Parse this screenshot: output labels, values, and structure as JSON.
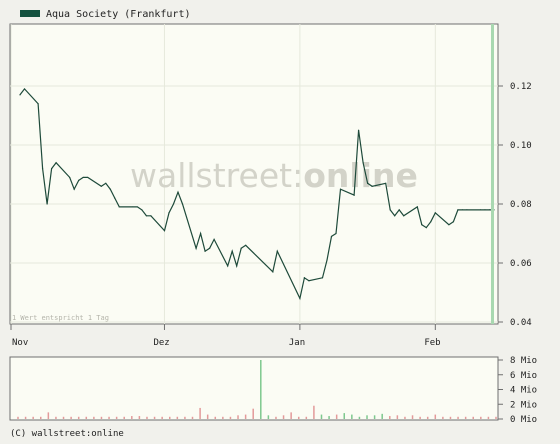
{
  "legend": {
    "label": "Aqua Society (Frankfurt)",
    "color": "#14523f"
  },
  "watermark": {
    "part1": "wallstreet",
    "part2": ":",
    "part3": "online"
  },
  "footnote": "1 Wert entspricht 1 Tag",
  "copyright": "(C) wallstreet:online",
  "colors": {
    "line": "#1e4a3a",
    "background": "#fbfcf4",
    "frame": "#6f6f6f",
    "grid": "#e6e9dc",
    "volume": "#e39a9a",
    "volume_up": "#7ec88e",
    "cursor": "#a8d8b0"
  },
  "chart_data": [
    {
      "type": "line",
      "series": [
        {
          "name": "Aqua Society (Frankfurt)",
          "x": [
            "2007-11-01",
            "2007-11-02",
            "2007-11-05",
            "2007-11-06",
            "2007-11-07",
            "2007-11-08",
            "2007-11-09",
            "2007-11-12",
            "2007-11-13",
            "2007-11-14",
            "2007-11-15",
            "2007-11-16",
            "2007-11-19",
            "2007-11-20",
            "2007-11-21",
            "2007-11-22",
            "2007-11-23",
            "2007-11-26",
            "2007-11-27",
            "2007-11-28",
            "2007-11-29",
            "2007-11-30",
            "2007-12-03",
            "2007-12-04",
            "2007-12-05",
            "2007-12-06",
            "2007-12-07",
            "2007-12-10",
            "2007-12-11",
            "2007-12-12",
            "2007-12-13",
            "2007-12-14",
            "2007-12-17",
            "2007-12-18",
            "2007-12-19",
            "2007-12-20",
            "2007-12-21",
            "2007-12-27",
            "2007-12-28",
            "2008-01-02",
            "2008-01-03",
            "2008-01-04",
            "2008-01-07",
            "2008-01-08",
            "2008-01-09",
            "2008-01-10",
            "2008-01-11",
            "2008-01-14",
            "2008-01-15",
            "2008-01-16",
            "2008-01-17",
            "2008-01-18",
            "2008-01-21",
            "2008-01-22",
            "2008-01-23",
            "2008-01-24",
            "2008-01-25",
            "2008-01-28",
            "2008-01-29",
            "2008-01-30",
            "2008-01-31",
            "2008-02-01",
            "2008-02-04",
            "2008-02-05",
            "2008-02-06",
            "2008-02-07",
            "2008-02-08",
            "2008-02-11",
            "2008-02-12",
            "2008-02-13",
            "2008-02-14"
          ],
          "values": [
            0.117,
            0.119,
            0.114,
            0.092,
            0.08,
            0.092,
            0.094,
            0.089,
            0.085,
            0.088,
            0.089,
            0.089,
            0.086,
            0.087,
            0.085,
            0.082,
            0.079,
            0.079,
            0.079,
            0.078,
            0.076,
            0.076,
            0.071,
            0.077,
            0.08,
            0.084,
            0.08,
            0.065,
            0.07,
            0.064,
            0.065,
            0.068,
            0.059,
            0.064,
            0.059,
            0.065,
            0.066,
            0.057,
            0.064,
            0.048,
            0.055,
            0.054,
            0.055,
            0.061,
            0.069,
            0.07,
            0.085,
            0.083,
            0.105,
            0.094,
            0.087,
            0.086,
            0.087,
            0.078,
            0.076,
            0.078,
            0.076,
            0.079,
            0.073,
            0.072,
            0.074,
            0.077,
            0.073,
            0.074,
            0.078,
            0.078,
            0.078,
            0.078,
            0.078,
            0.078,
            0.078
          ]
        }
      ],
      "x_tick_labels": [
        "Nov",
        "Dez",
        "Jan",
        "Feb"
      ],
      "y_tick_labels": [
        "0.04",
        "0.06",
        "0.08",
        "0.10",
        "0.12"
      ],
      "ylim": [
        0.04,
        0.14
      ],
      "grid": true,
      "legend_position": "top-left"
    },
    {
      "type": "bar",
      "title": "",
      "values_mio": [
        0.3,
        0.3,
        0.3,
        0.3,
        0.9,
        0.3,
        0.3,
        0.3,
        0.3,
        0.3,
        0.3,
        0.3,
        0.3,
        0.3,
        0.3,
        0.4,
        0.4,
        0.3,
        0.3,
        0.3,
        0.3,
        0.3,
        0.3,
        0.3,
        1.5,
        0.6,
        0.3,
        0.3,
        0.3,
        0.5,
        0.6,
        1.4,
        8.0,
        0.5,
        0.3,
        0.5,
        0.9,
        0.3,
        0.3,
        1.8,
        0.6,
        0.4,
        0.6,
        0.8,
        0.6,
        0.3,
        0.5,
        0.5,
        0.7,
        0.4,
        0.5,
        0.3,
        0.5,
        0.3,
        0.3,
        0.6,
        0.3,
        0.3,
        0.3,
        0.3,
        0.3,
        0.3,
        0.3,
        0.3
      ],
      "up_days": [
        32,
        33,
        40,
        41,
        43,
        44,
        45,
        46,
        47,
        48
      ],
      "y_tick_labels": [
        "0 Mio",
        "2 Mio",
        "4 Mio",
        "6 Mio",
        "8 Mio"
      ],
      "ylim": [
        0,
        8
      ]
    }
  ]
}
